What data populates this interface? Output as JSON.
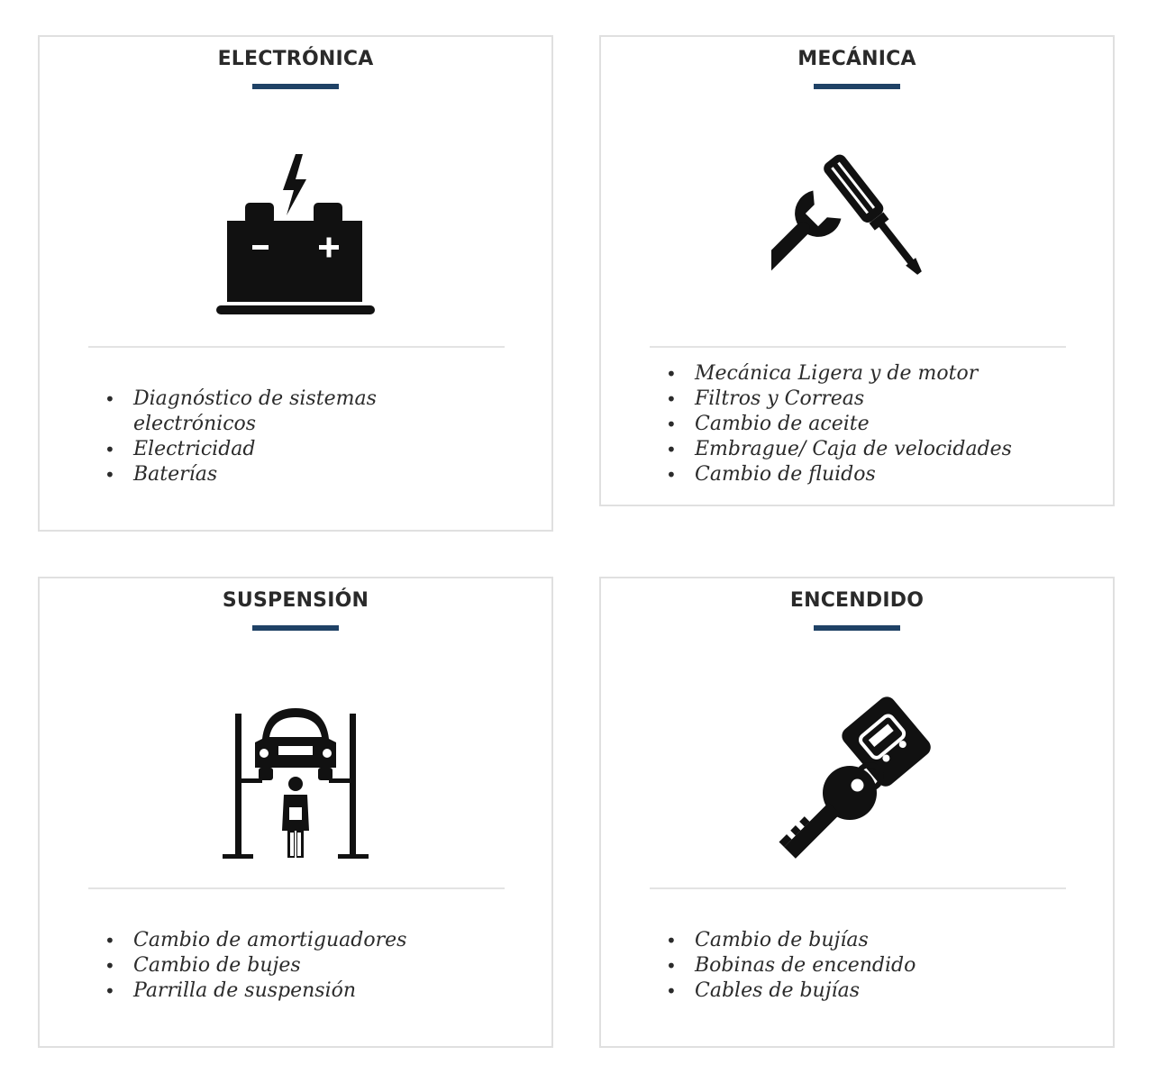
{
  "cards": [
    {
      "title": "ELECTRÓNICA",
      "icon": "battery-icon",
      "items": [
        "Diagnóstico de sistemas electrónicos",
        "Electricidad",
        "Baterías"
      ]
    },
    {
      "title": "MECÁNICA",
      "icon": "wrench-screwdriver-icon",
      "items": [
        "Mecánica Ligera y de motor",
        "Filtros y Correas",
        "Cambio de aceite",
        "Embrague/ Caja de velocidades",
        "Cambio de fluidos"
      ]
    },
    {
      "title": "SUSPENSIÓN",
      "icon": "car-lift-mechanic-icon",
      "items": [
        "Cambio de amortiguadores",
        "Cambio de bujes",
        "Parrilla de suspensión"
      ]
    },
    {
      "title": "ENCENDIDO",
      "icon": "car-key-icon",
      "items": [
        "Cambio de bujías",
        "Bobinas de encendido",
        "Cables de bujías"
      ]
    }
  ],
  "colors": {
    "accent": "#1f4266",
    "border": "#e0e0e0",
    "text": "#2b2b2b"
  }
}
